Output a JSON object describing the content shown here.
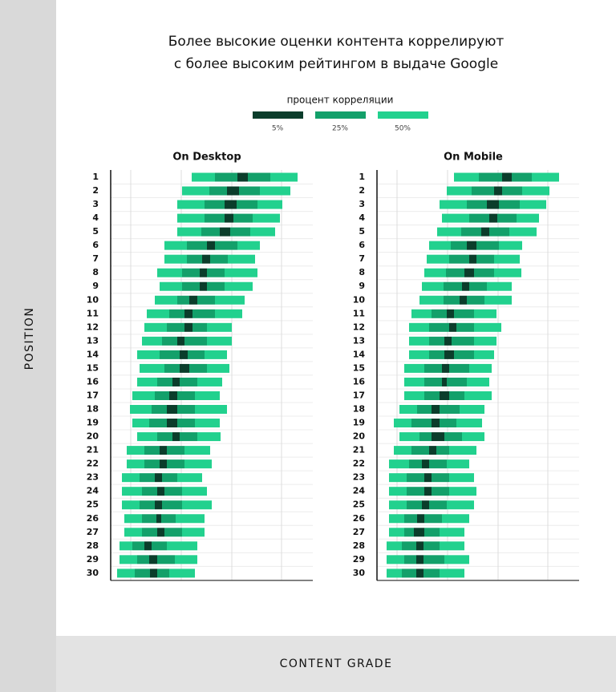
{
  "header": {
    "title": [
      "Более высокие оценки контента коррелируют",
      "с более высоким рейтингом в выдаче Google"
    ],
    "legend_title": "процент корреляции",
    "legend": [
      {
        "label": "5%",
        "color": "#0b3d2b"
      },
      {
        "label": "25%",
        "color": "#13a06a"
      },
      {
        "label": "50%",
        "color": "#22d18e"
      }
    ],
    "y_label": "POSITION",
    "x_label": "CONTENT GRADE"
  },
  "chart_data": [
    {
      "type": "range_bar",
      "title": "On Desktop",
      "categories": [
        "1",
        "2",
        "3",
        "4",
        "5",
        "6",
        "7",
        "8",
        "9",
        "10",
        "11",
        "12",
        "13",
        "14",
        "15",
        "16",
        "17",
        "18",
        "19",
        "20",
        "21",
        "22",
        "23",
        "24",
        "25",
        "26",
        "27",
        "28",
        "29",
        "30"
      ],
      "values": [
        [
          101,
          130,
          158,
          171,
          199,
          233
        ],
        [
          89,
          123,
          145,
          160,
          186,
          224
        ],
        [
          83,
          117,
          142,
          157,
          183,
          214
        ],
        [
          83,
          117,
          142,
          153,
          177,
          211
        ],
        [
          83,
          113,
          136,
          149,
          174,
          205
        ],
        [
          67,
          95,
          120,
          130,
          158,
          186
        ],
        [
          67,
          95,
          114,
          124,
          146,
          180
        ],
        [
          58,
          89,
          111,
          120,
          142,
          183
        ],
        [
          61,
          89,
          111,
          120,
          142,
          177
        ],
        [
          55,
          83,
          98,
          108,
          130,
          167
        ],
        [
          45,
          73,
          92,
          102,
          130,
          164
        ],
        [
          42,
          70,
          92,
          102,
          120,
          151
        ],
        [
          39,
          64,
          83,
          92,
          120,
          151
        ],
        [
          33,
          61,
          86,
          96,
          117,
          145
        ],
        [
          36,
          67,
          86,
          98,
          120,
          148
        ],
        [
          33,
          58,
          77,
          86,
          108,
          139
        ],
        [
          27,
          55,
          73,
          83,
          105,
          136
        ],
        [
          24,
          51,
          70,
          83,
          105,
          145
        ],
        [
          27,
          48,
          70,
          83,
          105,
          136
        ],
        [
          33,
          58,
          77,
          86,
          108,
          137
        ],
        [
          20,
          42,
          61,
          70,
          92,
          124
        ],
        [
          20,
          42,
          61,
          70,
          92,
          126
        ],
        [
          14,
          36,
          55,
          64,
          83,
          114
        ],
        [
          14,
          39,
          58,
          67,
          89,
          120
        ],
        [
          14,
          36,
          55,
          64,
          89,
          126
        ],
        [
          17,
          39,
          57,
          63,
          81,
          117
        ],
        [
          17,
          39,
          58,
          67,
          89,
          117
        ],
        [
          11,
          27,
          42,
          51,
          70,
          108
        ],
        [
          11,
          33,
          48,
          58,
          80,
          108
        ],
        [
          8,
          30,
          49,
          58,
          73,
          105
        ]
      ],
      "xlim": [
        0,
        252
      ],
      "xgrid": [
        25,
        88,
        151,
        213
      ]
    },
    {
      "type": "range_bar",
      "title": "On Mobile",
      "categories": [
        "1",
        "2",
        "3",
        "4",
        "5",
        "6",
        "7",
        "8",
        "9",
        "10",
        "11",
        "12",
        "13",
        "14",
        "15",
        "16",
        "17",
        "18",
        "19",
        "20",
        "21",
        "22",
        "23",
        "24",
        "25",
        "26",
        "27",
        "28",
        "29",
        "30"
      ],
      "values": [
        [
          96,
          127,
          156,
          168,
          193,
          227
        ],
        [
          87,
          118,
          146,
          156,
          181,
          215
        ],
        [
          78,
          112,
          137,
          152,
          178,
          211
        ],
        [
          81,
          115,
          140,
          150,
          174,
          202
        ],
        [
          75,
          105,
          130,
          140,
          165,
          199
        ],
        [
          65,
          92,
          112,
          124,
          152,
          181
        ],
        [
          62,
          90,
          115,
          124,
          146,
          178
        ],
        [
          59,
          86,
          109,
          121,
          146,
          180
        ],
        [
          56,
          83,
          106,
          115,
          137,
          168
        ],
        [
          53,
          83,
          103,
          112,
          134,
          168
        ],
        [
          43,
          68,
          87,
          96,
          121,
          149
        ],
        [
          40,
          65,
          90,
          99,
          121,
          155
        ],
        [
          40,
          65,
          84,
          93,
          121,
          149
        ],
        [
          40,
          65,
          84,
          96,
          121,
          146
        ],
        [
          34,
          59,
          81,
          90,
          115,
          143
        ],
        [
          34,
          59,
          81,
          87,
          112,
          140
        ],
        [
          34,
          59,
          78,
          90,
          109,
          143
        ],
        [
          28,
          50,
          68,
          78,
          103,
          134
        ],
        [
          21,
          43,
          68,
          78,
          99,
          131
        ],
        [
          28,
          53,
          68,
          84,
          106,
          134
        ],
        [
          21,
          43,
          65,
          74,
          90,
          124
        ],
        [
          15,
          40,
          56,
          65,
          87,
          115
        ],
        [
          15,
          37,
          59,
          68,
          90,
          121
        ],
        [
          15,
          37,
          59,
          68,
          90,
          124
        ],
        [
          15,
          37,
          56,
          65,
          87,
          121
        ],
        [
          15,
          34,
          50,
          59,
          81,
          115
        ],
        [
          15,
          34,
          46,
          59,
          78,
          109
        ],
        [
          12,
          31,
          49,
          58,
          78,
          109
        ],
        [
          12,
          34,
          49,
          58,
          84,
          115
        ],
        [
          12,
          31,
          49,
          58,
          78,
          109
        ]
      ],
      "xlim": [
        0,
        252
      ],
      "xgrid": [
        25,
        88,
        151,
        213
      ]
    }
  ]
}
